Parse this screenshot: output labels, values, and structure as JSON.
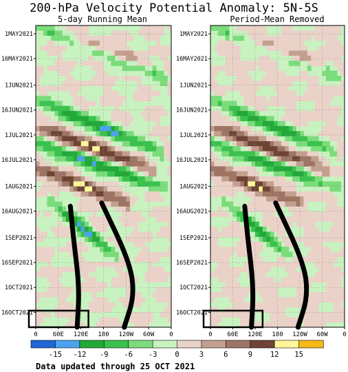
{
  "chart_data": {
    "type": "heatmap",
    "title": "200-hPa Velocity Potential Anomaly: 5N-5S",
    "footer": "Data updated through 25 OCT 2021",
    "panels": [
      {
        "subtitle": "5-day Running Mean"
      },
      {
        "subtitle": "Period-Mean Removed"
      }
    ],
    "y_axis": {
      "labels": [
        "1MAY2021",
        "16MAY2021",
        "1JUN2021",
        "16JUN2021",
        "1JUL2021",
        "16JUL2021",
        "1AUG2021",
        "16AUG2021",
        "1SEP2021",
        "16SEP2021",
        "1OCT2021",
        "16OCT2021"
      ],
      "range": [
        "26APR2021",
        "25OCT2021"
      ]
    },
    "x_axis": {
      "labels": [
        "0",
        "60E",
        "120E",
        "180",
        "120W",
        "60W",
        "0"
      ],
      "range_deg_east": [
        0,
        360
      ]
    },
    "colorbar": {
      "tick_labels": [
        "-15",
        "-12",
        "-9",
        "-6",
        "-3",
        "0",
        "3",
        "6",
        "9",
        "12",
        "15"
      ],
      "colors": [
        "#1f66d6",
        "#4ba3ee",
        "#23a83a",
        "#3bc24e",
        "#7bdc7b",
        "#c8f2c0",
        "#ead2c8",
        "#c39f8e",
        "#9e7565",
        "#6e4535",
        "#fff79a",
        "#f5b818"
      ]
    },
    "features": {
      "anomaly_bands": [
        {
          "sign": "negative",
          "from": {
            "date": "26APR2021",
            "lon": 0
          },
          "to": {
            "date": "26MAY2021",
            "lon": 330
          }
        },
        {
          "sign": "negative",
          "from": {
            "date": "10JUN2021",
            "lon": 0
          },
          "to": {
            "date": "10JUL2021",
            "lon": 320
          }
        },
        {
          "sign": "negative",
          "from": {
            "date": "6JUL2021",
            "lon": 0
          },
          "to": {
            "date": "1AUG2021",
            "lon": 330
          }
        },
        {
          "sign": "negative",
          "from": {
            "date": "11AUG2021",
            "lon": 40
          },
          "to": {
            "date": "11SEP2021",
            "lon": 210
          }
        },
        {
          "sign": "positive",
          "from": {
            "date": "1MAY2021",
            "lon": 60
          },
          "to": {
            "date": "21MAY2021",
            "lon": 300
          }
        },
        {
          "sign": "positive",
          "from": {
            "date": "26JUN2021",
            "lon": 0
          },
          "to": {
            "date": "21JUL2021",
            "lon": 300
          }
        },
        {
          "sign": "positive",
          "from": {
            "date": "21JUL2021",
            "lon": 0
          },
          "to": {
            "date": "11AUG2021",
            "lon": 240
          }
        }
      ],
      "tracks": [
        {
          "points": [
            {
              "date": "13AUG2021",
              "lon": 92
            },
            {
              "date": "1SEP2021",
              "lon": 100
            },
            {
              "date": "1OCT2021",
              "lon": 116
            },
            {
              "date": "25OCT2021",
              "lon": 110
            }
          ]
        },
        {
          "points": [
            {
              "date": "11AUG2021",
              "lon": 175
            },
            {
              "date": "16SEP2021",
              "lon": 250
            },
            {
              "date": "6OCT2021",
              "lon": 262
            },
            {
              "date": "25OCT2021",
              "lon": 235
            }
          ]
        }
      ],
      "highlight_box": {
        "lon_range": [
          0,
          140
        ],
        "date_range": [
          "15OCT2021",
          "25OCT2021"
        ]
      }
    }
  }
}
